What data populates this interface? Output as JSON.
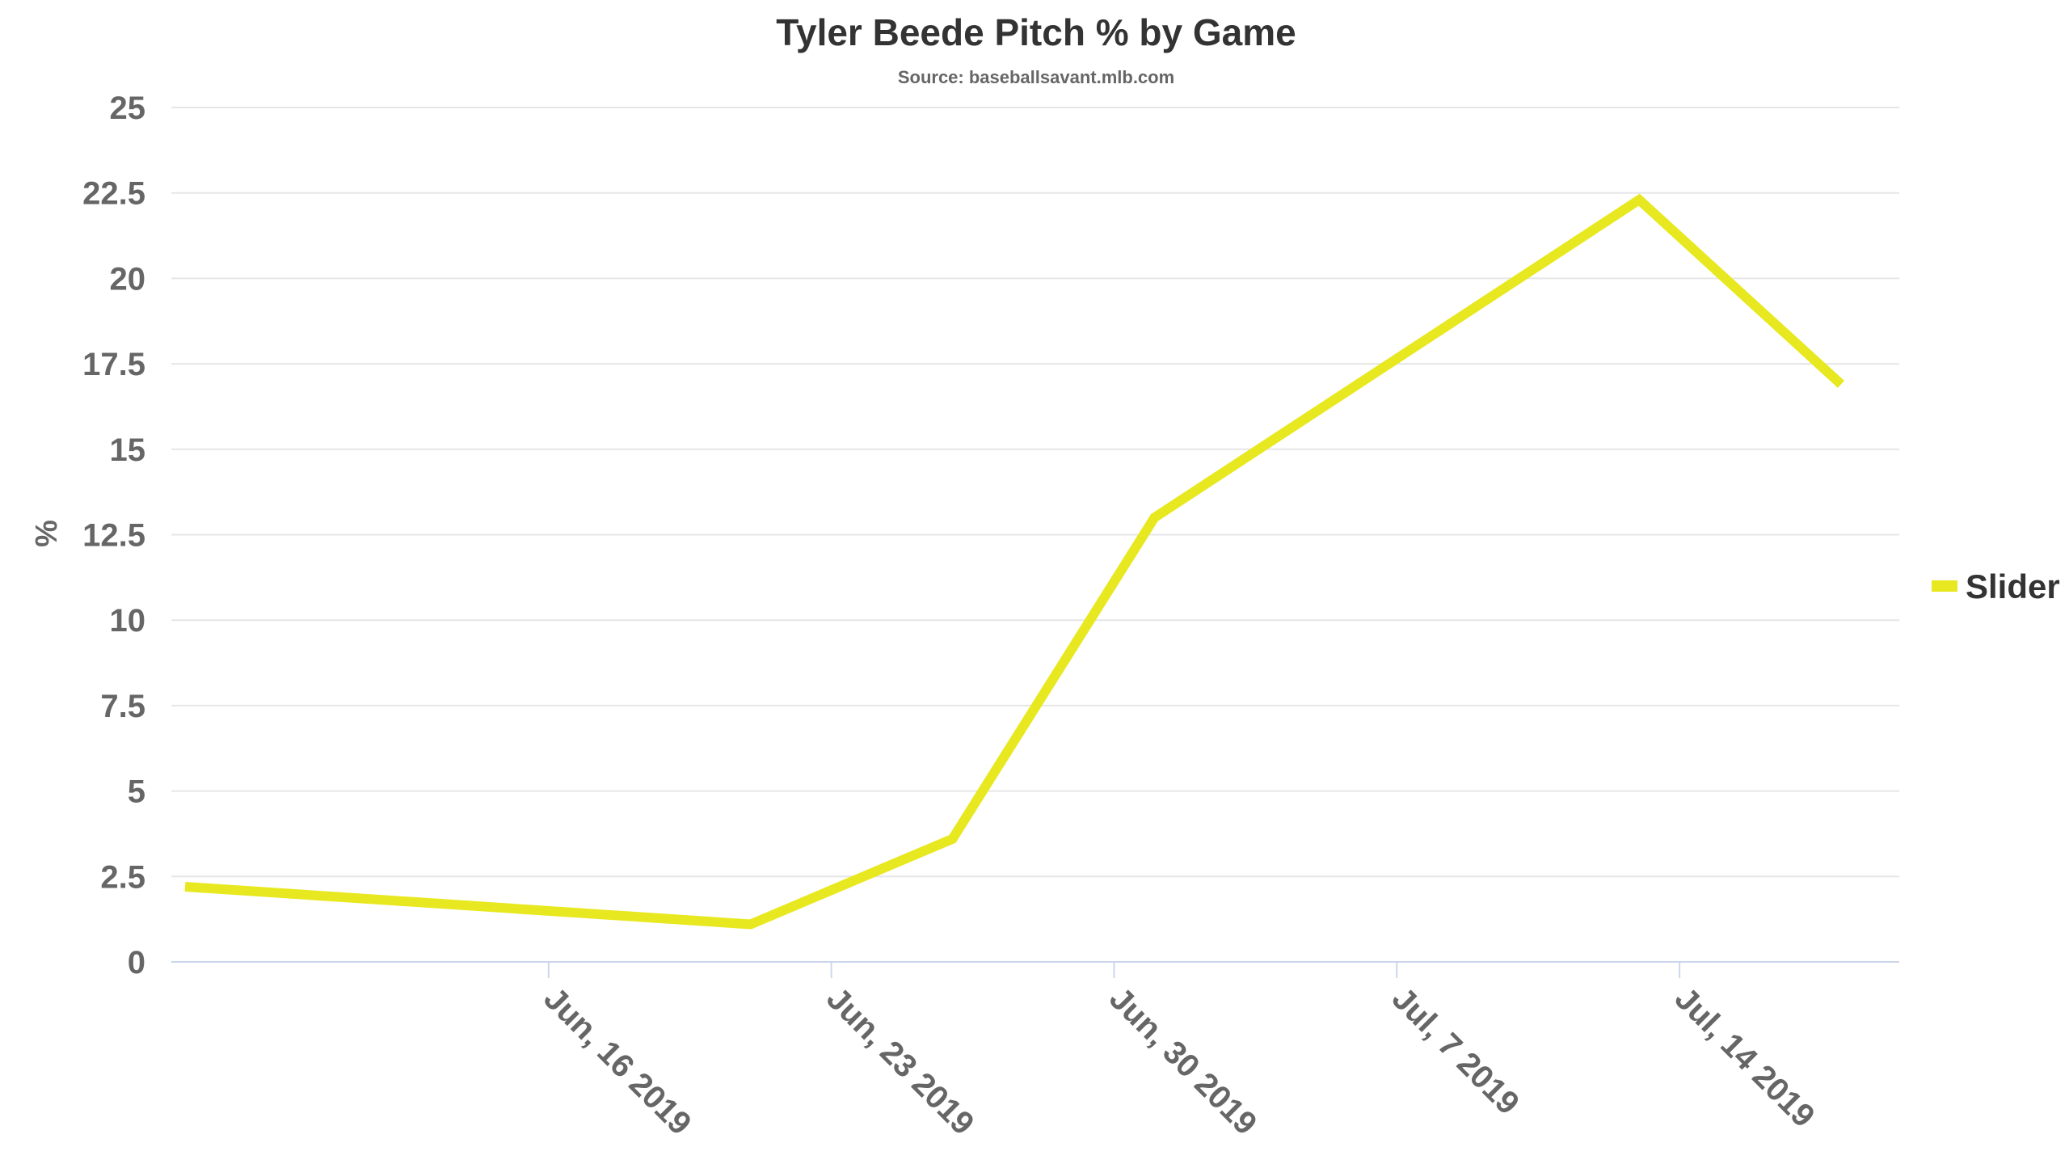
{
  "chart_data": {
    "type": "line",
    "title": "Tyler Beede Pitch % by Game",
    "subtitle": "Source: baseballsavant.mlb.com",
    "xlabel": "",
    "ylabel": "%",
    "x_type": "date",
    "xlim": [
      "2019-06-07",
      "2019-07-19"
    ],
    "ylim": [
      0,
      25
    ],
    "y_ticks": [
      "0",
      "2.5",
      "5",
      "7.5",
      "10",
      "12.5",
      "15",
      "17.5",
      "20",
      "22.5",
      "25"
    ],
    "x_ticks": [
      {
        "date": "2019-06-16",
        "label": "Jun, 16 2019"
      },
      {
        "date": "2019-06-23",
        "label": "Jun, 23 2019"
      },
      {
        "date": "2019-06-30",
        "label": "Jun, 30 2019"
      },
      {
        "date": "2019-07-07",
        "label": "Jul, 7 2019"
      },
      {
        "date": "2019-07-14",
        "label": "Jul, 14 2019"
      }
    ],
    "grid": true,
    "legend": "right",
    "series": [
      {
        "name": "Slider",
        "color": "#e8e820",
        "points": [
          {
            "x": "2019-06-07",
            "y": 2.2
          },
          {
            "x": "2019-06-21",
            "y": 1.1
          },
          {
            "x": "2019-06-26",
            "y": 3.6
          },
          {
            "x": "2019-07-01",
            "y": 13.0
          },
          {
            "x": "2019-07-13",
            "y": 22.3
          },
          {
            "x": "2019-07-18",
            "y": 16.9
          }
        ]
      }
    ]
  }
}
